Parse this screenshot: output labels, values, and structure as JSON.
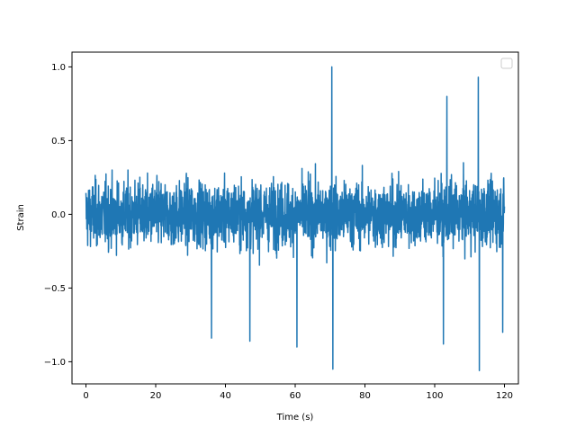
{
  "chart_data": {
    "type": "line",
    "title": "",
    "xlabel": "Time (s)",
    "ylabel": "Strain",
    "xlim": [
      -4,
      124
    ],
    "ylim": [
      -1.15,
      1.1
    ],
    "x_ticks": [
      0,
      20,
      40,
      60,
      80,
      100,
      120
    ],
    "x_tick_labels": [
      "0",
      "20",
      "40",
      "60",
      "80",
      "100",
      "120"
    ],
    "y_ticks": [
      -1.0,
      -0.5,
      0.0,
      0.5,
      1.0
    ],
    "y_tick_labels": [
      "−1.0",
      "−0.5",
      "0.0",
      "0.5",
      "1.0"
    ],
    "grid": false,
    "legend": {
      "placement": "top-right",
      "entries": []
    },
    "series": [
      {
        "color": "#1f77b4",
        "x_range": [
          0,
          120
        ],
        "typical_amplitude": 0.55,
        "peaks": [
          {
            "x": 70.5,
            "y": 1.0
          },
          {
            "x": 70.8,
            "y": -1.05
          },
          {
            "x": 112.8,
            "y": -1.06
          },
          {
            "x": 112.5,
            "y": 0.93
          },
          {
            "x": 103.5,
            "y": 0.8
          },
          {
            "x": 36.0,
            "y": -0.84
          },
          {
            "x": 47.0,
            "y": -0.86
          },
          {
            "x": 60.5,
            "y": -0.9
          },
          {
            "x": 102.5,
            "y": -0.88
          },
          {
            "x": 119.5,
            "y": -0.8
          }
        ]
      }
    ]
  }
}
